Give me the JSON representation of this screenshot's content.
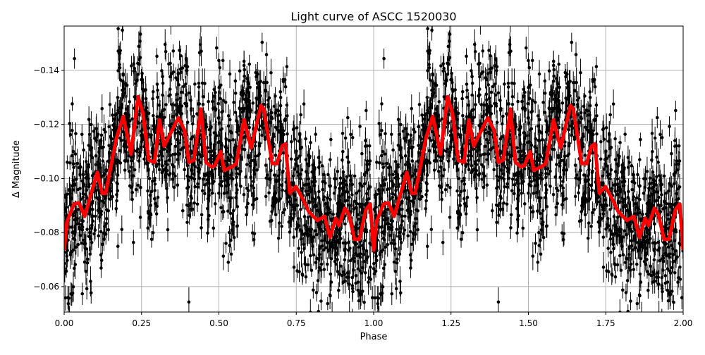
{
  "chart_data": {
    "type": "scatter",
    "title": "Light curve of ASCC 1520030",
    "xlabel": "Phase",
    "ylabel": "Δ Magnitude",
    "xlim": [
      0,
      2
    ],
    "ylim": [
      -0.0506,
      -0.1564
    ],
    "y_inverted": true,
    "grid": true,
    "x_ticks": [
      "0.00",
      "0.25",
      "0.50",
      "0.75",
      "1.00",
      "1.25",
      "1.50",
      "1.75",
      "2.00"
    ],
    "y_ticks": [
      "−0.14",
      "−0.12",
      "−0.10",
      "−0.08",
      "−0.06"
    ],
    "y_tick_values": [
      -0.14,
      -0.12,
      -0.1,
      -0.08,
      -0.06
    ],
    "colors": {
      "observations": "#000000",
      "model": "#ff0000",
      "grid": "#b0b0b0"
    },
    "series": [
      {
        "kind": "errorbar-points",
        "color": "#000000",
        "scatter_sd": 0.012,
        "errorbar_half": 0.004
      },
      {
        "kind": "line",
        "color": "#ff0000",
        "period_repeat": 1,
        "x": [
          0,
          0.009,
          0.032,
          0.048,
          0.066,
          0.107,
          0.123,
          0.134,
          0.169,
          0.191,
          0.203,
          0.216,
          0.239,
          0.255,
          0.273,
          0.292,
          0.308,
          0.323,
          0.369,
          0.389,
          0.403,
          0.419,
          0.442,
          0.458,
          0.476,
          0.487,
          0.506,
          0.517,
          0.544,
          0.556,
          0.581,
          0.604,
          0.636,
          0.645,
          0.672,
          0.688,
          0.704,
          0.715,
          0.729,
          0.749,
          0.768,
          0.79,
          0.818,
          0.841,
          0.859,
          0.877,
          0.888,
          0.907,
          0.92,
          0.938,
          0.954,
          0.975,
          0.989,
          1.0
        ],
        "y": [
          -0.0735,
          -0.084,
          -0.0906,
          -0.091,
          -0.086,
          -0.1023,
          -0.0945,
          -0.0945,
          -0.115,
          -0.123,
          -0.1165,
          -0.109,
          -0.1303,
          -0.124,
          -0.1068,
          -0.106,
          -0.1217,
          -0.112,
          -0.1225,
          -0.1178,
          -0.106,
          -0.1068,
          -0.1257,
          -0.106,
          -0.1043,
          -0.1048,
          -0.11,
          -0.103,
          -0.1045,
          -0.1055,
          -0.1217,
          -0.1113,
          -0.127,
          -0.1257,
          -0.1055,
          -0.1055,
          -0.112,
          -0.1128,
          -0.0946,
          -0.097,
          -0.093,
          -0.0878,
          -0.0845,
          -0.086,
          -0.0782,
          -0.0853,
          -0.0826,
          -0.089,
          -0.0867,
          -0.0775,
          -0.0775,
          -0.0885,
          -0.0906,
          -0.0735
        ]
      }
    ]
  }
}
